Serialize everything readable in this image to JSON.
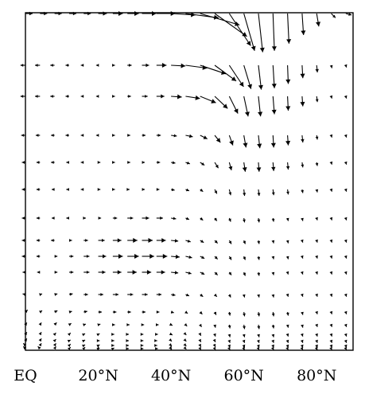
{
  "chart_data": {
    "type": "vector-field",
    "title": "",
    "xlabel": "",
    "ylabel": "",
    "xlim": [
      0,
      90
    ],
    "x_ticks": [
      {
        "value": 0,
        "label": "EQ"
      },
      {
        "value": 20,
        "label": "20°N"
      },
      {
        "value": 40,
        "label": "40°N"
      },
      {
        "value": 60,
        "label": "60°N"
      },
      {
        "value": 80,
        "label": "80°N"
      }
    ],
    "x_latitudes": [
      0,
      4,
      8,
      12,
      16,
      20,
      24,
      28,
      32,
      36,
      40,
      44,
      48,
      52,
      56,
      60,
      64,
      68,
      72,
      76,
      80,
      84,
      88
    ],
    "levels": [
      {
        "level": 1,
        "u": [
          1,
          1,
          1,
          1,
          1,
          1.2,
          1.4,
          1.6,
          2,
          2.6,
          3.4,
          4.6,
          5.5,
          4.5,
          3,
          1.5,
          0.6,
          0.2,
          0.2,
          0.2,
          0.3,
          0.6,
          0.8
        ],
        "v": [
          0,
          0,
          0,
          0,
          0,
          0,
          0,
          0,
          0,
          0,
          -0.2,
          -0.6,
          -1.6,
          -3.2,
          -4.5,
          -5.2,
          -5.4,
          -5.2,
          -4.2,
          -3,
          -1.8,
          -0.6,
          -0.2
        ]
      },
      {
        "level": 2,
        "u": [
          -0.7,
          -0.7,
          -0.6,
          -0.5,
          -0.4,
          -0.3,
          0.3,
          0.6,
          1,
          1.4,
          2,
          3,
          3.6,
          3,
          2,
          1,
          0.4,
          0.2,
          0.1,
          0.1,
          0.1,
          0.1,
          0.1
        ],
        "v": [
          0,
          0,
          0,
          0,
          0,
          0,
          0,
          0,
          0,
          0,
          -0.1,
          -0.4,
          -1.2,
          -2.2,
          -3,
          -3.3,
          -3.4,
          -3.2,
          -2.6,
          -1.8,
          -1,
          -0.4,
          -0.3
        ]
      },
      {
        "level": 3,
        "u": [
          -0.7,
          -0.7,
          -0.6,
          -0.5,
          -0.4,
          -0.3,
          0.3,
          0.5,
          0.8,
          1.1,
          1.5,
          2,
          2.2,
          1.8,
          1.2,
          0.6,
          0.3,
          0.2,
          0.1,
          0.1,
          0.1,
          0.1,
          0.1
        ],
        "v": [
          0,
          0,
          0,
          0,
          0,
          0,
          0,
          0,
          0,
          0,
          -0.1,
          -0.3,
          -0.9,
          -1.7,
          -2.4,
          -2.8,
          -2.8,
          -2.5,
          -2,
          -1.4,
          -0.8,
          -0.3,
          -0.3
        ]
      },
      {
        "level": 4,
        "u": [
          -0.6,
          -0.6,
          -0.5,
          -0.5,
          -0.4,
          -0.3,
          0.3,
          0.4,
          0.5,
          0.6,
          0.8,
          1,
          1,
          0.8,
          0.5,
          0.3,
          0.2,
          0.1,
          0.1,
          0.1,
          0.1,
          0.1,
          0.1
        ],
        "v": [
          0,
          0,
          0,
          0,
          0,
          0,
          0,
          0,
          0,
          0,
          -0.1,
          -0.2,
          -0.5,
          -1,
          -1.4,
          -1.7,
          -1.8,
          -1.7,
          -1.4,
          -1,
          -0.6,
          -0.3,
          -0.3
        ]
      },
      {
        "level": 5,
        "u": [
          -0.5,
          -0.5,
          -0.5,
          -0.4,
          -0.4,
          0.3,
          0.3,
          0.4,
          0.4,
          0.5,
          0.6,
          0.6,
          0.6,
          0.5,
          0.3,
          0.2,
          0.1,
          0.1,
          0.1,
          0.1,
          0.1,
          0.1,
          0.1
        ],
        "v": [
          0,
          0,
          0,
          0,
          0,
          0,
          0,
          0,
          0,
          0,
          -0.1,
          -0.2,
          -0.4,
          -0.8,
          -1.1,
          -1.3,
          -1.3,
          -1.2,
          -1,
          -0.7,
          -0.5,
          -0.3,
          -0.3
        ]
      },
      {
        "level": 6,
        "u": [
          -0.5,
          -0.5,
          -0.4,
          -0.4,
          -0.4,
          0.3,
          0.3,
          0.3,
          0.4,
          0.4,
          0.5,
          0.5,
          0.4,
          0.3,
          0.2,
          0.1,
          0.1,
          0.1,
          0.1,
          0.1,
          0.1,
          0.1,
          0.1
        ],
        "v": [
          0,
          0,
          0,
          0,
          0,
          0,
          0,
          0,
          0,
          0,
          -0.1,
          -0.2,
          -0.3,
          -0.6,
          -0.8,
          -0.9,
          -0.9,
          -0.8,
          -0.7,
          -0.5,
          -0.4,
          -0.3,
          -0.3
        ]
      },
      {
        "level": 7,
        "u": [
          -0.5,
          -0.5,
          -0.4,
          -0.4,
          0.3,
          0.4,
          0.6,
          0.8,
          1,
          0.9,
          0.7,
          0.5,
          0.4,
          0.3,
          0.2,
          0.1,
          0.1,
          0.1,
          0.1,
          0.1,
          0.1,
          0.1,
          0.1
        ],
        "v": [
          0,
          0,
          0,
          0,
          0,
          0,
          0,
          0,
          0,
          0,
          -0.1,
          -0.2,
          -0.3,
          -0.4,
          -0.5,
          -0.6,
          -0.6,
          -0.5,
          -0.4,
          -0.4,
          -0.3,
          -0.3,
          -0.3
        ]
      },
      {
        "level": 8,
        "u": [
          -0.5,
          -0.5,
          -0.5,
          0.4,
          0.6,
          0.9,
          1.2,
          1.4,
          1.5,
          1.3,
          1,
          0.7,
          0.5,
          0.4,
          0.3,
          0.2,
          0.1,
          0.1,
          0.1,
          0.1,
          0.1,
          0.1,
          0.1
        ],
        "v": [
          0,
          0,
          0,
          0,
          0,
          0,
          0,
          0,
          0,
          0,
          -0.1,
          -0.2,
          -0.3,
          -0.4,
          -0.5,
          -0.5,
          -0.5,
          -0.4,
          -0.4,
          -0.3,
          -0.3,
          -0.3,
          -0.3
        ]
      },
      {
        "level": 9,
        "u": [
          -0.5,
          -0.5,
          0.4,
          0.6,
          0.8,
          1.1,
          1.4,
          1.6,
          1.7,
          1.5,
          1.2,
          0.9,
          0.6,
          0.4,
          0.3,
          0.2,
          0.1,
          0.1,
          0.1,
          0.1,
          0.1,
          0.1,
          0.1
        ],
        "v": [
          0,
          0,
          0,
          0,
          0,
          0,
          0,
          0,
          0,
          0,
          -0.1,
          -0.2,
          -0.3,
          -0.4,
          -0.5,
          -0.5,
          -0.5,
          -0.4,
          -0.4,
          -0.3,
          -0.3,
          -0.3,
          -0.3
        ]
      },
      {
        "level": 10,
        "u": [
          -0.4,
          -0.4,
          0.4,
          0.6,
          0.8,
          1,
          1.2,
          1.3,
          1.3,
          1.2,
          1,
          0.8,
          0.6,
          0.4,
          0.3,
          0.2,
          0.1,
          0.1,
          0.1,
          0.1,
          0.1,
          0.1,
          0.1
        ],
        "v": [
          0,
          0,
          0,
          0,
          0,
          0,
          0,
          0,
          0,
          0,
          -0.1,
          -0.2,
          -0.3,
          -0.4,
          -0.4,
          -0.5,
          -0.5,
          -0.4,
          -0.3,
          -0.3,
          -0.3,
          -0.3,
          -0.3
        ]
      },
      {
        "level": 11,
        "u": [
          -0.4,
          0.3,
          0.4,
          0.5,
          0.6,
          0.7,
          0.8,
          0.8,
          0.8,
          0.7,
          0.6,
          0.5,
          0.4,
          0.3,
          0.2,
          0.1,
          0.1,
          0.1,
          0.1,
          0.1,
          0.1,
          0.1,
          0.1
        ],
        "v": [
          0.1,
          0.1,
          0.1,
          0.1,
          0,
          0,
          0,
          0,
          0,
          0,
          -0.1,
          -0.2,
          -0.3,
          -0.3,
          -0.4,
          -0.4,
          -0.4,
          -0.4,
          -0.3,
          -0.3,
          -0.3,
          -0.3,
          -0.3
        ]
      },
      {
        "level": 12,
        "u": [
          0.3,
          0.3,
          0.4,
          0.4,
          0.5,
          0.5,
          0.5,
          0.5,
          0.5,
          0.4,
          0.4,
          0.3,
          0.3,
          0.2,
          0.1,
          0.1,
          0.1,
          0.1,
          0.1,
          0.1,
          0.1,
          0.1,
          0.1
        ],
        "v": [
          0.3,
          0.2,
          0.2,
          0.1,
          0.1,
          0,
          0,
          0,
          0,
          0,
          -0.1,
          -0.2,
          -0.3,
          -0.4,
          -0.5,
          -0.6,
          -0.6,
          -0.6,
          -0.5,
          -0.4,
          -0.3,
          -0.3,
          -0.3
        ]
      },
      {
        "level": 13,
        "u": [
          0.2,
          0.2,
          0.3,
          0.3,
          0.3,
          0.3,
          0.3,
          0.3,
          0.3,
          0.3,
          0.2,
          0.2,
          0.2,
          0.1,
          0.1,
          0.1,
          0.1,
          0.1,
          0.1,
          0.1,
          0.1,
          0.1,
          0.1
        ],
        "v": [
          0.3,
          0.3,
          0.3,
          0.2,
          0.1,
          0.1,
          0,
          0,
          0,
          0,
          -0.1,
          -0.2,
          -0.3,
          -0.4,
          -0.5,
          -0.6,
          -0.6,
          -0.5,
          -0.4,
          -0.4,
          -0.3,
          -0.3,
          -0.3
        ]
      },
      {
        "level": 14,
        "u": [
          0.2,
          0.2,
          0.2,
          0.2,
          0.2,
          0.2,
          0.2,
          0.2,
          0.2,
          0.2,
          0.2,
          0.1,
          0.1,
          0.1,
          0.1,
          0.1,
          0.1,
          0.1,
          0.1,
          0.1,
          0.1,
          0.1,
          0.1
        ],
        "v": [
          0.3,
          0.3,
          0.2,
          0.2,
          0.1,
          0.1,
          0,
          0,
          0,
          0,
          -0.1,
          -0.1,
          -0.2,
          -0.3,
          -0.4,
          -0.4,
          -0.4,
          -0.4,
          -0.3,
          -0.3,
          -0.3,
          -0.3,
          -0.3
        ]
      },
      {
        "level": 15,
        "u": [
          0.2,
          0.2,
          0.2,
          0.2,
          0.2,
          0.2,
          0.2,
          0.2,
          0.2,
          0.1,
          0.1,
          0.1,
          0.1,
          0.1,
          0.1,
          0.1,
          0.1,
          0.1,
          0.1,
          0.1,
          0.1,
          0.1,
          0.1
        ],
        "v": [
          0.3,
          0.3,
          0.2,
          0.1,
          0.1,
          0,
          0,
          0,
          0,
          0,
          -0.1,
          -0.1,
          -0.2,
          -0.2,
          -0.3,
          -0.3,
          -0.3,
          -0.3,
          -0.3,
          -0.3,
          -0.3,
          -0.3,
          -0.3
        ]
      },
      {
        "level": 16,
        "u": [
          -0.3,
          0.2,
          0.2,
          0.2,
          0.2,
          0.2,
          0.2,
          0.2,
          0.2,
          0.1,
          0.1,
          0.1,
          0.1,
          0.1,
          0.1,
          0.1,
          0.1,
          0.1,
          0.1,
          0.1,
          0.1,
          0.1,
          0.1
        ],
        "v": [
          0.3,
          0.3,
          0.3,
          0.2,
          0.1,
          0.1,
          0,
          0,
          0,
          0,
          -0.1,
          -0.1,
          -0.2,
          -0.2,
          -0.3,
          -0.3,
          -0.3,
          -0.3,
          -0.3,
          -0.3,
          -0.3,
          -0.3,
          -0.3
        ]
      },
      {
        "level": 17,
        "u": [
          -0.3,
          -0.3,
          0.2,
          0.2,
          0.2,
          0.2,
          0.2,
          0.2,
          0.2,
          0.2,
          0.1,
          0.1,
          0.1,
          0.1,
          0.1,
          0.1,
          0.1,
          0.1,
          0.1,
          0.1,
          0.1,
          0.1,
          0.1
        ],
        "v": [
          0.3,
          0.3,
          0.3,
          0.2,
          0.2,
          0.1,
          0.1,
          0,
          0,
          0,
          -0.1,
          -0.1,
          -0.2,
          -0.2,
          -0.2,
          -0.2,
          -0.2,
          -0.2,
          -0.2,
          -0.2,
          -0.2,
          -0.2,
          -0.2
        ]
      }
    ],
    "grid": false,
    "legend": "none"
  }
}
